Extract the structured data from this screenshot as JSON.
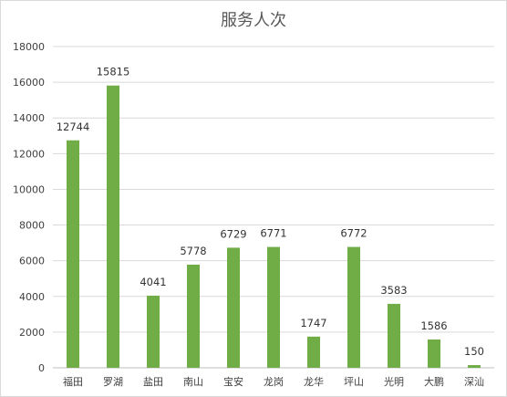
{
  "chart_data": {
    "type": "bar",
    "title": "服务人次",
    "categories": [
      "福田",
      "罗湖",
      "盐田",
      "南山",
      "宝安",
      "龙岗",
      "龙华",
      "坪山",
      "光明",
      "大鹏",
      "深汕"
    ],
    "values": [
      12744,
      15815,
      4041,
      5778,
      6729,
      6771,
      1747,
      6772,
      3583,
      1586,
      150
    ],
    "ylim": [
      0,
      18000
    ],
    "yticks": [
      0,
      2000,
      4000,
      6000,
      8000,
      10000,
      12000,
      14000,
      16000,
      18000
    ],
    "grid": true,
    "legend": "none",
    "bar_color": "#70ad47",
    "xlabel": "",
    "ylabel": ""
  }
}
